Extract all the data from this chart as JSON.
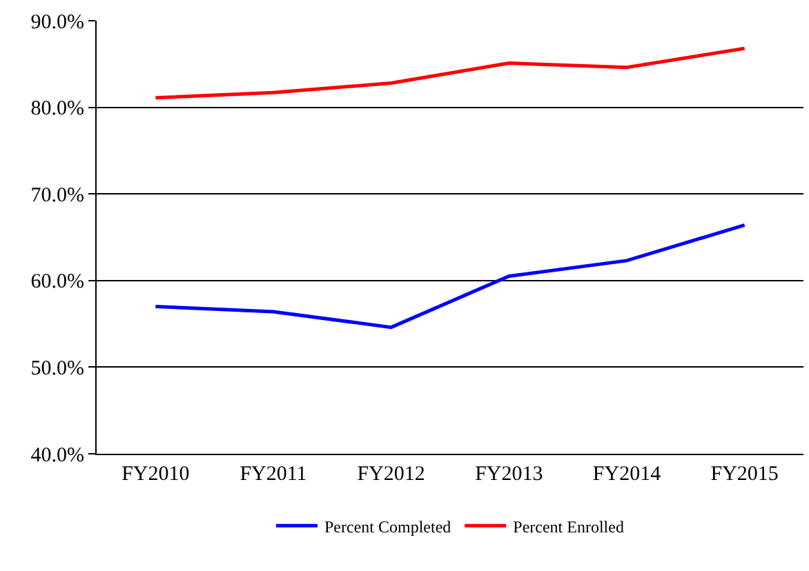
{
  "chart_data": {
    "type": "line",
    "categories": [
      "FY2010",
      "FY2011",
      "FY2012",
      "FY2013",
      "FY2014",
      "FY2015"
    ],
    "series": [
      {
        "name": "Percent Completed",
        "color": "#0000ff",
        "values": [
          57.0,
          56.4,
          54.6,
          60.5,
          62.3,
          66.4
        ]
      },
      {
        "name": "Percent Enrolled",
        "color": "#ff0000",
        "values": [
          81.1,
          81.7,
          82.8,
          85.1,
          84.6,
          86.8
        ]
      }
    ],
    "ylim": [
      40,
      90
    ],
    "yticks": [
      {
        "value": 40,
        "label": "40.0%"
      },
      {
        "value": 50,
        "label": "50.0%"
      },
      {
        "value": 60,
        "label": "60.0%"
      },
      {
        "value": 70,
        "label": "70.0%"
      },
      {
        "value": 80,
        "label": "80.0%"
      },
      {
        "value": 90,
        "label": "90.0%"
      }
    ],
    "grid": "y",
    "legend": "bottom",
    "marker": "none",
    "line_style": "solid"
  }
}
